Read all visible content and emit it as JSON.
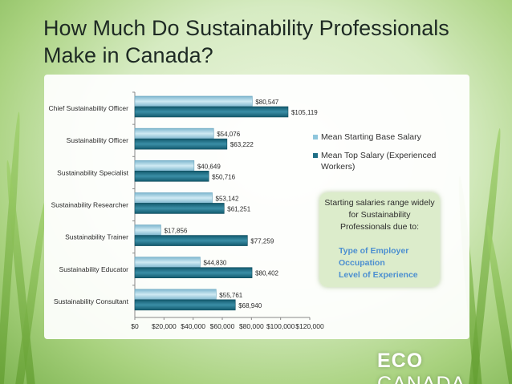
{
  "title": "How Much Do Sustainability Professionals Make in Canada?",
  "chart_data": {
    "type": "bar",
    "orientation": "horizontal",
    "categories": [
      "Chief Sustainability Officer",
      "Sustainability Officer",
      "Sustainability Specialist",
      "Sustainability Researcher",
      "Sustainability Trainer",
      "Sustainability Educator",
      "Sustainability Consultant"
    ],
    "series": [
      {
        "name": "Mean Starting Base Salary",
        "values": [
          80547,
          54076,
          40649,
          53142,
          17856,
          44830,
          55761
        ],
        "labels": [
          "$80,547",
          "$54,076",
          "$40,649",
          "$53,142",
          "$17,856",
          "$44,830",
          "$55,761"
        ],
        "color": "#8ec6dc"
      },
      {
        "name": "Mean Top Salary (Experienced Workers)",
        "values": [
          105119,
          63222,
          50716,
          61251,
          77259,
          80402,
          68940
        ],
        "labels": [
          "$105,119",
          "$63,222",
          "$50,716",
          "$61,251",
          "$77,259",
          "$80,402",
          "$68,940"
        ],
        "color": "#1f6f86"
      }
    ],
    "xlim": [
      0,
      120000
    ],
    "xticks": [
      0,
      20000,
      40000,
      60000,
      80000,
      100000,
      120000
    ],
    "xtick_labels": [
      "$0",
      "$20,000",
      "$40,000",
      "$60,000",
      "$80,000",
      "$100,000",
      "$120,000"
    ],
    "grid": false,
    "legend_position": "right"
  },
  "note": {
    "text": "Starting salaries range widely for Sustainability Professionals due to:",
    "items": [
      "Type of Employer",
      "Occupation",
      "Level of Experience"
    ]
  },
  "logo": {
    "part1": "ECO",
    "part2": " CANADA"
  }
}
